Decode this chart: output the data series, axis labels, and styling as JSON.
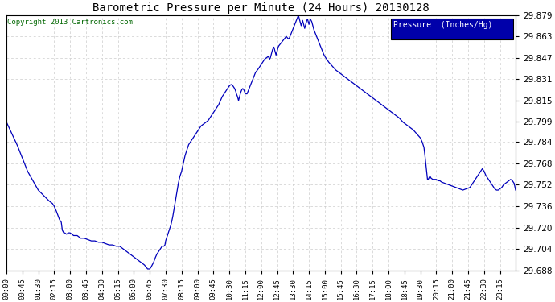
{
  "title": "Barometric Pressure per Minute (24 Hours) 20130128",
  "copyright": "Copyright 2013 Cartronics.com",
  "legend_label": "Pressure  (Inches/Hg)",
  "line_color": "#0000bb",
  "background_color": "#ffffff",
  "grid_color": "#cccccc",
  "ylim": [
    29.688,
    29.879
  ],
  "yticks": [
    29.688,
    29.704,
    29.72,
    29.736,
    29.752,
    29.768,
    29.784,
    29.799,
    29.815,
    29.831,
    29.847,
    29.863,
    29.879
  ],
  "xtick_labels": [
    "00:00",
    "00:45",
    "01:30",
    "02:15",
    "03:00",
    "03:45",
    "04:30",
    "05:15",
    "06:00",
    "06:45",
    "07:30",
    "08:15",
    "09:00",
    "09:45",
    "10:30",
    "11:15",
    "12:00",
    "12:45",
    "13:30",
    "14:15",
    "15:00",
    "15:45",
    "16:30",
    "17:15",
    "18:00",
    "18:45",
    "19:30",
    "20:15",
    "21:00",
    "21:45",
    "22:30",
    "23:15"
  ],
  "key_points": [
    [
      0,
      29.799
    ],
    [
      30,
      29.782
    ],
    [
      60,
      29.762
    ],
    [
      90,
      29.748
    ],
    [
      120,
      29.74
    ],
    [
      130,
      29.738
    ],
    [
      135,
      29.736
    ],
    [
      140,
      29.733
    ],
    [
      150,
      29.726
    ],
    [
      155,
      29.724
    ],
    [
      158,
      29.718
    ],
    [
      162,
      29.716
    ],
    [
      165,
      29.716
    ],
    [
      170,
      29.715
    ],
    [
      175,
      29.716
    ],
    [
      180,
      29.716
    ],
    [
      185,
      29.715
    ],
    [
      190,
      29.714
    ],
    [
      200,
      29.714
    ],
    [
      205,
      29.713
    ],
    [
      210,
      29.712
    ],
    [
      220,
      29.712
    ],
    [
      230,
      29.711
    ],
    [
      240,
      29.71
    ],
    [
      250,
      29.71
    ],
    [
      260,
      29.709
    ],
    [
      270,
      29.709
    ],
    [
      280,
      29.708
    ],
    [
      290,
      29.707
    ],
    [
      300,
      29.707
    ],
    [
      310,
      29.706
    ],
    [
      320,
      29.706
    ],
    [
      325,
      29.705
    ],
    [
      330,
      29.704
    ],
    [
      335,
      29.703
    ],
    [
      340,
      29.702
    ],
    [
      345,
      29.701
    ],
    [
      350,
      29.7
    ],
    [
      355,
      29.699
    ],
    [
      360,
      29.698
    ],
    [
      365,
      29.697
    ],
    [
      370,
      29.696
    ],
    [
      375,
      29.695
    ],
    [
      380,
      29.694
    ],
    [
      385,
      29.693
    ],
    [
      390,
      29.692
    ],
    [
      393,
      29.691
    ],
    [
      396,
      29.69
    ],
    [
      399,
      29.689
    ],
    [
      402,
      29.689
    ],
    [
      405,
      29.689
    ],
    [
      408,
      29.69
    ],
    [
      412,
      29.692
    ],
    [
      416,
      29.694
    ],
    [
      420,
      29.697
    ],
    [
      425,
      29.7
    ],
    [
      430,
      29.702
    ],
    [
      435,
      29.704
    ],
    [
      440,
      29.706
    ],
    [
      445,
      29.706
    ],
    [
      448,
      29.707
    ],
    [
      450,
      29.71
    ],
    [
      455,
      29.714
    ],
    [
      460,
      29.718
    ],
    [
      465,
      29.722
    ],
    [
      470,
      29.728
    ],
    [
      475,
      29.736
    ],
    [
      480,
      29.744
    ],
    [
      485,
      29.752
    ],
    [
      490,
      29.758
    ],
    [
      495,
      29.762
    ],
    [
      500,
      29.768
    ],
    [
      505,
      29.774
    ],
    [
      510,
      29.778
    ],
    [
      515,
      29.782
    ],
    [
      520,
      29.784
    ],
    [
      525,
      29.786
    ],
    [
      530,
      29.788
    ],
    [
      535,
      29.79
    ],
    [
      540,
      29.792
    ],
    [
      545,
      29.794
    ],
    [
      550,
      29.796
    ],
    [
      555,
      29.797
    ],
    [
      560,
      29.798
    ],
    [
      565,
      29.799
    ],
    [
      570,
      29.8
    ],
    [
      575,
      29.802
    ],
    [
      580,
      29.804
    ],
    [
      585,
      29.806
    ],
    [
      590,
      29.808
    ],
    [
      595,
      29.81
    ],
    [
      600,
      29.812
    ],
    [
      605,
      29.815
    ],
    [
      610,
      29.818
    ],
    [
      615,
      29.82
    ],
    [
      620,
      29.822
    ],
    [
      625,
      29.824
    ],
    [
      630,
      29.826
    ],
    [
      635,
      29.827
    ],
    [
      640,
      29.826
    ],
    [
      645,
      29.824
    ],
    [
      648,
      29.822
    ],
    [
      650,
      29.82
    ],
    [
      653,
      29.818
    ],
    [
      656,
      29.815
    ],
    [
      659,
      29.818
    ],
    [
      662,
      29.821
    ],
    [
      665,
      29.823
    ],
    [
      668,
      29.824
    ],
    [
      671,
      29.823
    ],
    [
      674,
      29.821
    ],
    [
      677,
      29.82
    ],
    [
      680,
      29.82
    ],
    [
      683,
      29.822
    ],
    [
      686,
      29.824
    ],
    [
      689,
      29.826
    ],
    [
      692,
      29.828
    ],
    [
      695,
      29.83
    ],
    [
      698,
      29.832
    ],
    [
      701,
      29.834
    ],
    [
      704,
      29.836
    ],
    [
      707,
      29.837
    ],
    [
      710,
      29.838
    ],
    [
      715,
      29.84
    ],
    [
      720,
      29.842
    ],
    [
      725,
      29.844
    ],
    [
      730,
      29.846
    ],
    [
      735,
      29.847
    ],
    [
      740,
      29.848
    ],
    [
      742,
      29.847
    ],
    [
      744,
      29.846
    ],
    [
      746,
      29.847
    ],
    [
      748,
      29.849
    ],
    [
      750,
      29.851
    ],
    [
      752,
      29.853
    ],
    [
      754,
      29.854
    ],
    [
      756,
      29.855
    ],
    [
      758,
      29.853
    ],
    [
      760,
      29.851
    ],
    [
      762,
      29.849
    ],
    [
      764,
      29.851
    ],
    [
      766,
      29.853
    ],
    [
      768,
      29.855
    ],
    [
      770,
      29.856
    ],
    [
      773,
      29.857
    ],
    [
      776,
      29.858
    ],
    [
      779,
      29.859
    ],
    [
      782,
      29.86
    ],
    [
      785,
      29.861
    ],
    [
      788,
      29.862
    ],
    [
      791,
      29.863
    ],
    [
      794,
      29.862
    ],
    [
      797,
      29.861
    ],
    [
      800,
      29.862
    ],
    [
      803,
      29.864
    ],
    [
      806,
      29.866
    ],
    [
      809,
      29.868
    ],
    [
      812,
      29.87
    ],
    [
      815,
      29.872
    ],
    [
      818,
      29.874
    ],
    [
      821,
      29.876
    ],
    [
      824,
      29.878
    ],
    [
      825,
      29.879
    ],
    [
      827,
      29.877
    ],
    [
      829,
      29.875
    ],
    [
      831,
      29.873
    ],
    [
      833,
      29.871
    ],
    [
      835,
      29.873
    ],
    [
      837,
      29.875
    ],
    [
      839,
      29.873
    ],
    [
      841,
      29.871
    ],
    [
      843,
      29.869
    ],
    [
      845,
      29.871
    ],
    [
      847,
      29.873
    ],
    [
      849,
      29.875
    ],
    [
      851,
      29.876
    ],
    [
      853,
      29.874
    ],
    [
      855,
      29.872
    ],
    [
      857,
      29.874
    ],
    [
      859,
      29.876
    ],
    [
      861,
      29.875
    ],
    [
      863,
      29.874
    ],
    [
      865,
      29.872
    ],
    [
      867,
      29.87
    ],
    [
      869,
      29.868
    ],
    [
      872,
      29.866
    ],
    [
      875,
      29.864
    ],
    [
      878,
      29.862
    ],
    [
      881,
      29.86
    ],
    [
      884,
      29.858
    ],
    [
      887,
      29.856
    ],
    [
      890,
      29.854
    ],
    [
      893,
      29.852
    ],
    [
      896,
      29.85
    ],
    [
      900,
      29.848
    ],
    [
      910,
      29.844
    ],
    [
      920,
      29.841
    ],
    [
      930,
      29.838
    ],
    [
      940,
      29.836
    ],
    [
      950,
      29.834
    ],
    [
      960,
      29.832
    ],
    [
      970,
      29.83
    ],
    [
      980,
      29.828
    ],
    [
      990,
      29.826
    ],
    [
      1000,
      29.824
    ],
    [
      1010,
      29.822
    ],
    [
      1020,
      29.82
    ],
    [
      1030,
      29.818
    ],
    [
      1040,
      29.816
    ],
    [
      1050,
      29.814
    ],
    [
      1060,
      29.812
    ],
    [
      1070,
      29.81
    ],
    [
      1080,
      29.808
    ],
    [
      1090,
      29.806
    ],
    [
      1100,
      29.804
    ],
    [
      1110,
      29.802
    ],
    [
      1120,
      29.799
    ],
    [
      1130,
      29.797
    ],
    [
      1140,
      29.795
    ],
    [
      1150,
      29.793
    ],
    [
      1160,
      29.79
    ],
    [
      1170,
      29.787
    ],
    [
      1175,
      29.784
    ],
    [
      1180,
      29.78
    ],
    [
      1182,
      29.776
    ],
    [
      1184,
      29.771
    ],
    [
      1186,
      29.766
    ],
    [
      1188,
      29.761
    ],
    [
      1190,
      29.756
    ],
    [
      1192,
      29.756
    ],
    [
      1194,
      29.757
    ],
    [
      1196,
      29.758
    ],
    [
      1198,
      29.758
    ],
    [
      1200,
      29.757
    ],
    [
      1205,
      29.756
    ],
    [
      1210,
      29.756
    ],
    [
      1215,
      29.756
    ],
    [
      1220,
      29.755
    ],
    [
      1225,
      29.755
    ],
    [
      1230,
      29.754
    ],
    [
      1240,
      29.753
    ],
    [
      1250,
      29.752
    ],
    [
      1260,
      29.751
    ],
    [
      1270,
      29.75
    ],
    [
      1280,
      29.749
    ],
    [
      1290,
      29.748
    ],
    [
      1300,
      29.749
    ],
    [
      1310,
      29.75
    ],
    [
      1315,
      29.752
    ],
    [
      1320,
      29.754
    ],
    [
      1325,
      29.756
    ],
    [
      1330,
      29.758
    ],
    [
      1335,
      29.76
    ],
    [
      1340,
      29.762
    ],
    [
      1345,
      29.764
    ],
    [
      1350,
      29.762
    ],
    [
      1355,
      29.759
    ],
    [
      1360,
      29.757
    ],
    [
      1365,
      29.755
    ],
    [
      1370,
      29.753
    ],
    [
      1375,
      29.751
    ],
    [
      1380,
      29.749
    ],
    [
      1385,
      29.748
    ],
    [
      1390,
      29.748
    ],
    [
      1395,
      29.749
    ],
    [
      1400,
      29.75
    ],
    [
      1405,
      29.752
    ],
    [
      1410,
      29.753
    ],
    [
      1415,
      29.754
    ],
    [
      1420,
      29.755
    ],
    [
      1425,
      29.756
    ],
    [
      1430,
      29.755
    ],
    [
      1435,
      29.753
    ],
    [
      1439,
      29.748
    ]
  ]
}
